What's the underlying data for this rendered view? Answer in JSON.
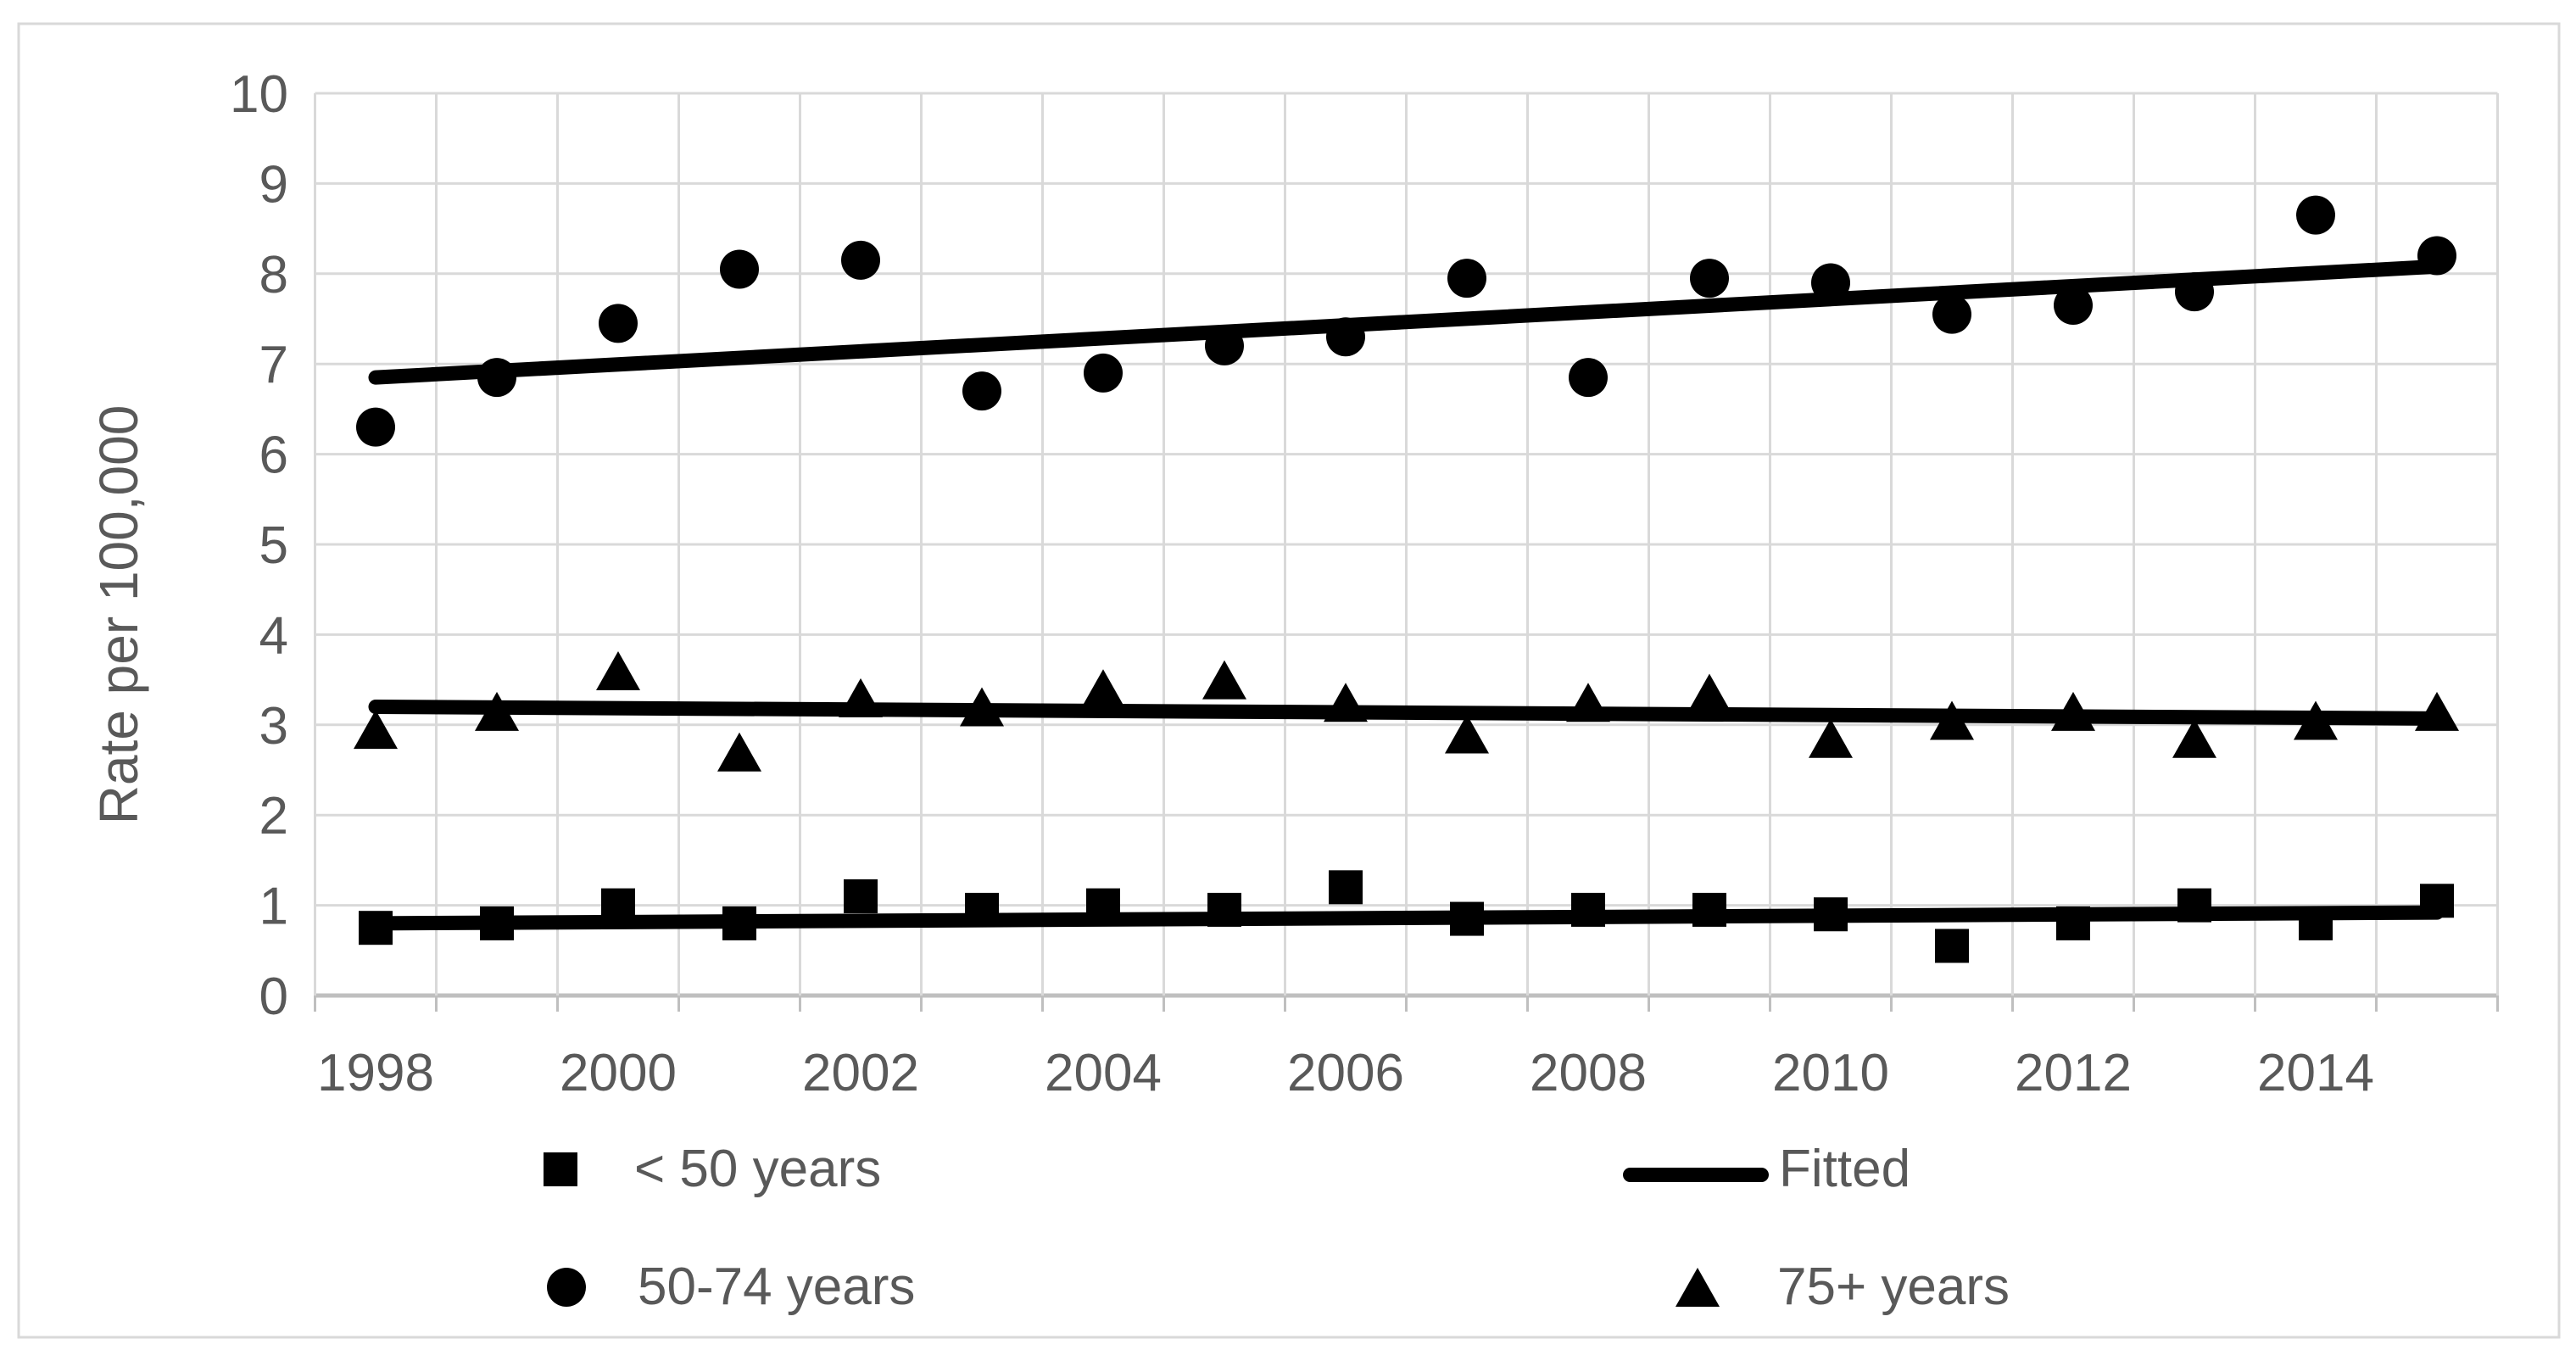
{
  "chart_data": {
    "type": "scatter",
    "title": "",
    "xlabel": "",
    "ylabel": "Rate per 100,000",
    "ylim": [
      0,
      10
    ],
    "ytick_interval": 1,
    "ytick_labels": [
      "0",
      "1",
      "2",
      "3",
      "4",
      "5",
      "6",
      "7",
      "8",
      "9",
      "10"
    ],
    "x": [
      1998,
      1999,
      2000,
      2001,
      2002,
      2003,
      2004,
      2005,
      2006,
      2007,
      2008,
      2009,
      2010,
      2011,
      2012,
      2013,
      2014,
      2015
    ],
    "xtick_labels": [
      "1998",
      "2000",
      "2002",
      "2004",
      "2006",
      "2008",
      "2010",
      "2012",
      "2014"
    ],
    "xtick_years": [
      1998,
      2000,
      2002,
      2004,
      2006,
      2008,
      2010,
      2012,
      2014
    ],
    "grid": true,
    "series": [
      {
        "name": "< 50 years",
        "marker": "square",
        "values": [
          0.75,
          0.8,
          1.0,
          0.8,
          1.1,
          0.95,
          1.0,
          0.95,
          1.2,
          0.85,
          0.95,
          0.95,
          0.9,
          0.55,
          0.8,
          1.0,
          0.8,
          1.05
        ]
      },
      {
        "name": "50-74 years",
        "marker": "circle",
        "values": [
          6.3,
          6.85,
          7.45,
          8.05,
          8.15,
          6.7,
          6.9,
          7.2,
          7.3,
          7.95,
          6.85,
          7.95,
          7.9,
          7.55,
          7.65,
          7.8,
          8.65,
          8.2
        ]
      },
      {
        "name": "75+ years",
        "marker": "triangle",
        "values": [
          2.95,
          3.15,
          3.6,
          2.7,
          3.3,
          3.2,
          3.4,
          3.5,
          3.25,
          2.9,
          3.25,
          3.35,
          2.85,
          3.05,
          3.15,
          2.85,
          3.05,
          3.15
        ]
      }
    ],
    "fitted_lines": [
      {
        "series": "< 50 years",
        "start_value": 0.8,
        "end_value": 0.92
      },
      {
        "series": "50-74 years",
        "start_value": 6.85,
        "end_value": 8.08
      },
      {
        "series": "75+ years",
        "start_value": 3.2,
        "end_value": 3.07
      }
    ],
    "legend": {
      "position": "bottom",
      "entries": [
        {
          "label": "< 50 years",
          "marker": "square"
        },
        {
          "label": "Fitted",
          "marker": "line"
        },
        {
          "label": "50-74 years",
          "marker": "circle"
        },
        {
          "label": "75+ years",
          "marker": "triangle"
        }
      ]
    },
    "colors": {
      "marker": "#000000",
      "fitted_line": "#000000",
      "gridline": "#d9d9d9",
      "axis_line": "#bfbfbf",
      "tick_label": "#595959",
      "axis_title": "#595959",
      "legend_text": "#595959",
      "chart_border": "#d9d9d9",
      "background": "#ffffff"
    }
  }
}
